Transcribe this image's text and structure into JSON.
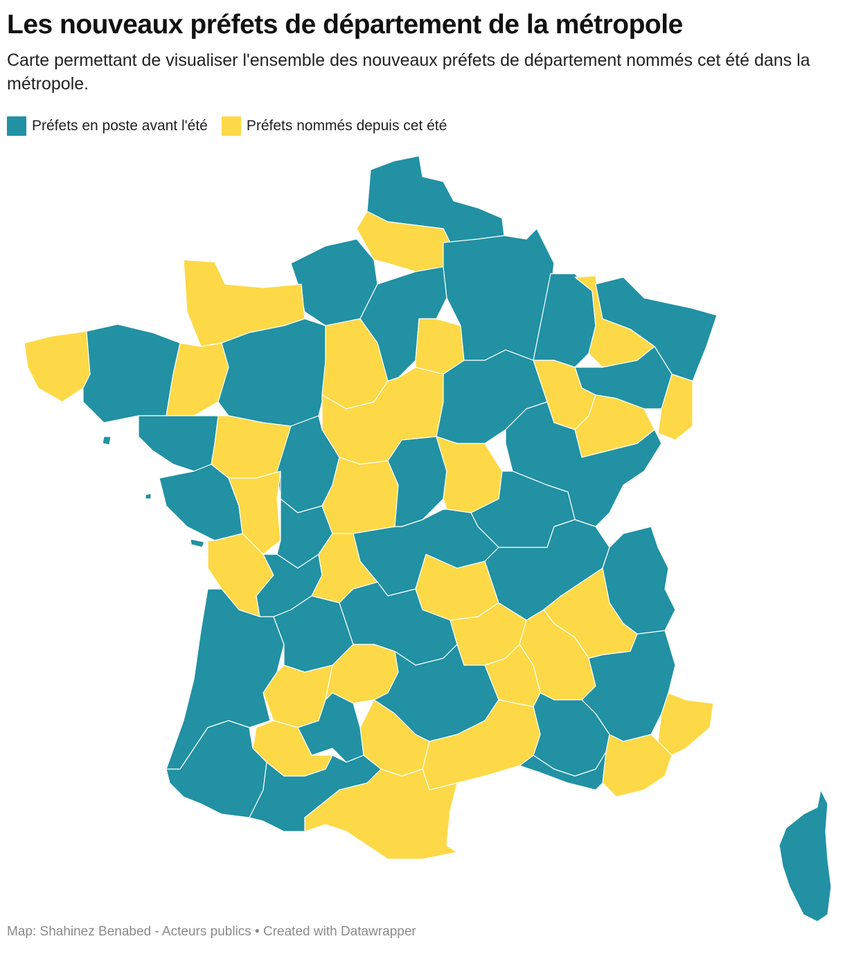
{
  "title": "Les nouveaux préfets de département de la métropole",
  "subtitle": "Carte permettant de visualiser l'ensemble des nouveaux préfets de département nommés cet été dans la métropole.",
  "legend": [
    {
      "label": "Préfets en poste avant l'été",
      "color": "#2191a3"
    },
    {
      "label": "Préfets nommés depuis cet été",
      "color": "#fdd947"
    }
  ],
  "footer": {
    "source": "Map: Shahinez Benabed - Acteurs publics",
    "separator": " • ",
    "credit": "Created with Datawrapper"
  },
  "colors": {
    "teal": "#2191a3",
    "yellow": "#fdd947"
  }
}
